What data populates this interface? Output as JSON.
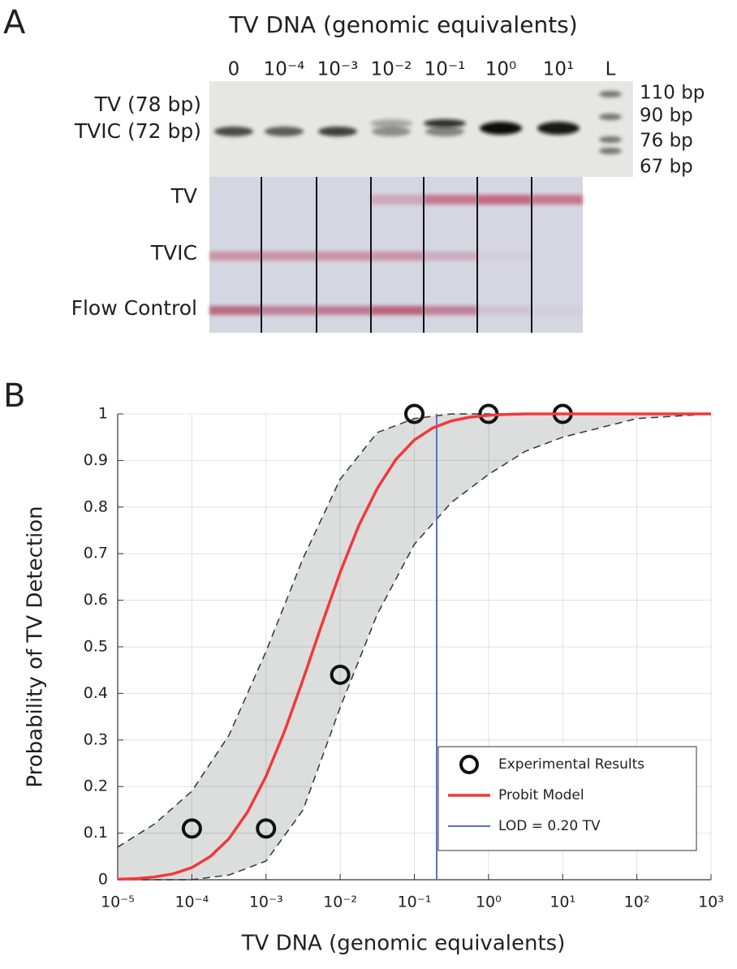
{
  "panel_a": {
    "label": "A",
    "title": "TV DNA (genomic  equivalents)",
    "lanes": [
      "0",
      "10⁻⁴",
      "10⁻³",
      "10⁻²",
      "10⁻¹",
      "10⁰",
      "10¹",
      "L"
    ],
    "gel_labels": [
      "TV (78 bp)",
      "TVIC (72 bp)"
    ],
    "ladder": [
      "110 bp",
      "90 bp",
      "76 bp",
      "67 bp"
    ],
    "strip_labels": [
      "TV",
      "TVIC",
      "Flow Control"
    ]
  },
  "chart_data": {
    "type": "line",
    "panel_label": "B",
    "x_label": "TV DNA (genomic  equivalents)",
    "y_label": "Probability of TV Detection",
    "x_scale": "log",
    "xlim": [
      1e-05,
      1000
    ],
    "xticks": [
      {
        "value": 1e-05,
        "label": "10⁻⁵"
      },
      {
        "value": 0.0001,
        "label": "10⁻⁴"
      },
      {
        "value": 0.001,
        "label": "10⁻³"
      },
      {
        "value": 0.01,
        "label": "10⁻²"
      },
      {
        "value": 0.1,
        "label": "10⁻¹"
      },
      {
        "value": 1,
        "label": "10⁰"
      },
      {
        "value": 10,
        "label": "10¹"
      },
      {
        "value": 100,
        "label": "10²"
      },
      {
        "value": 1000,
        "label": "10³"
      }
    ],
    "ylim": [
      0,
      1
    ],
    "yticks": [
      0,
      0.1,
      0.2,
      0.3,
      0.4,
      0.5,
      0.6,
      0.7,
      0.8,
      0.9,
      1
    ],
    "grid": true,
    "legend": "lower right",
    "series": [
      {
        "name": "Experimental Results",
        "color": "#111111",
        "marker": "circle",
        "x": [
          0.0001,
          0.001,
          0.01,
          0.1,
          1,
          10
        ],
        "values": [
          0.11,
          0.11,
          0.44,
          1,
          1,
          1
        ]
      },
      {
        "name": "Probit Model",
        "color": "#f0393c",
        "x": [
          1e-05,
          1.78e-05,
          3.16e-05,
          5.62e-05,
          0.0001,
          0.000178,
          0.000316,
          0.000562,
          0.001,
          0.00178,
          0.00316,
          0.00562,
          0.01,
          0.0178,
          0.0316,
          0.0562,
          0.1,
          0.178,
          0.316,
          0.562,
          1,
          1.78,
          3.16,
          10,
          100,
          1000
        ],
        "values": [
          0.001,
          0.0024,
          0.006,
          0.0127,
          0.026,
          0.05,
          0.088,
          0.145,
          0.222,
          0.319,
          0.43,
          0.547,
          0.66,
          0.76,
          0.84,
          0.902,
          0.944,
          0.97,
          0.985,
          0.993,
          0.997,
          0.999,
          1,
          1,
          1,
          1
        ]
      }
    ],
    "band": {
      "color": "#dcdedd",
      "x": [
        1e-05,
        3.16e-05,
        0.0001,
        0.000316,
        0.001,
        0.00316,
        0.01,
        0.0316,
        0.1,
        0.316,
        1,
        3.16,
        10,
        100,
        1000
      ],
      "upper": [
        0.07,
        0.12,
        0.19,
        0.31,
        0.49,
        0.69,
        0.86,
        0.96,
        0.99,
        1,
        1,
        1,
        1,
        1,
        1
      ],
      "lower": [
        0,
        0,
        0,
        0.01,
        0.04,
        0.15,
        0.37,
        0.57,
        0.72,
        0.81,
        0.87,
        0.92,
        0.95,
        0.99,
        1
      ]
    },
    "vline": {
      "name": "LOD = 0.20 TV",
      "x": 0.2,
      "color": "#5a6fd0"
    }
  }
}
